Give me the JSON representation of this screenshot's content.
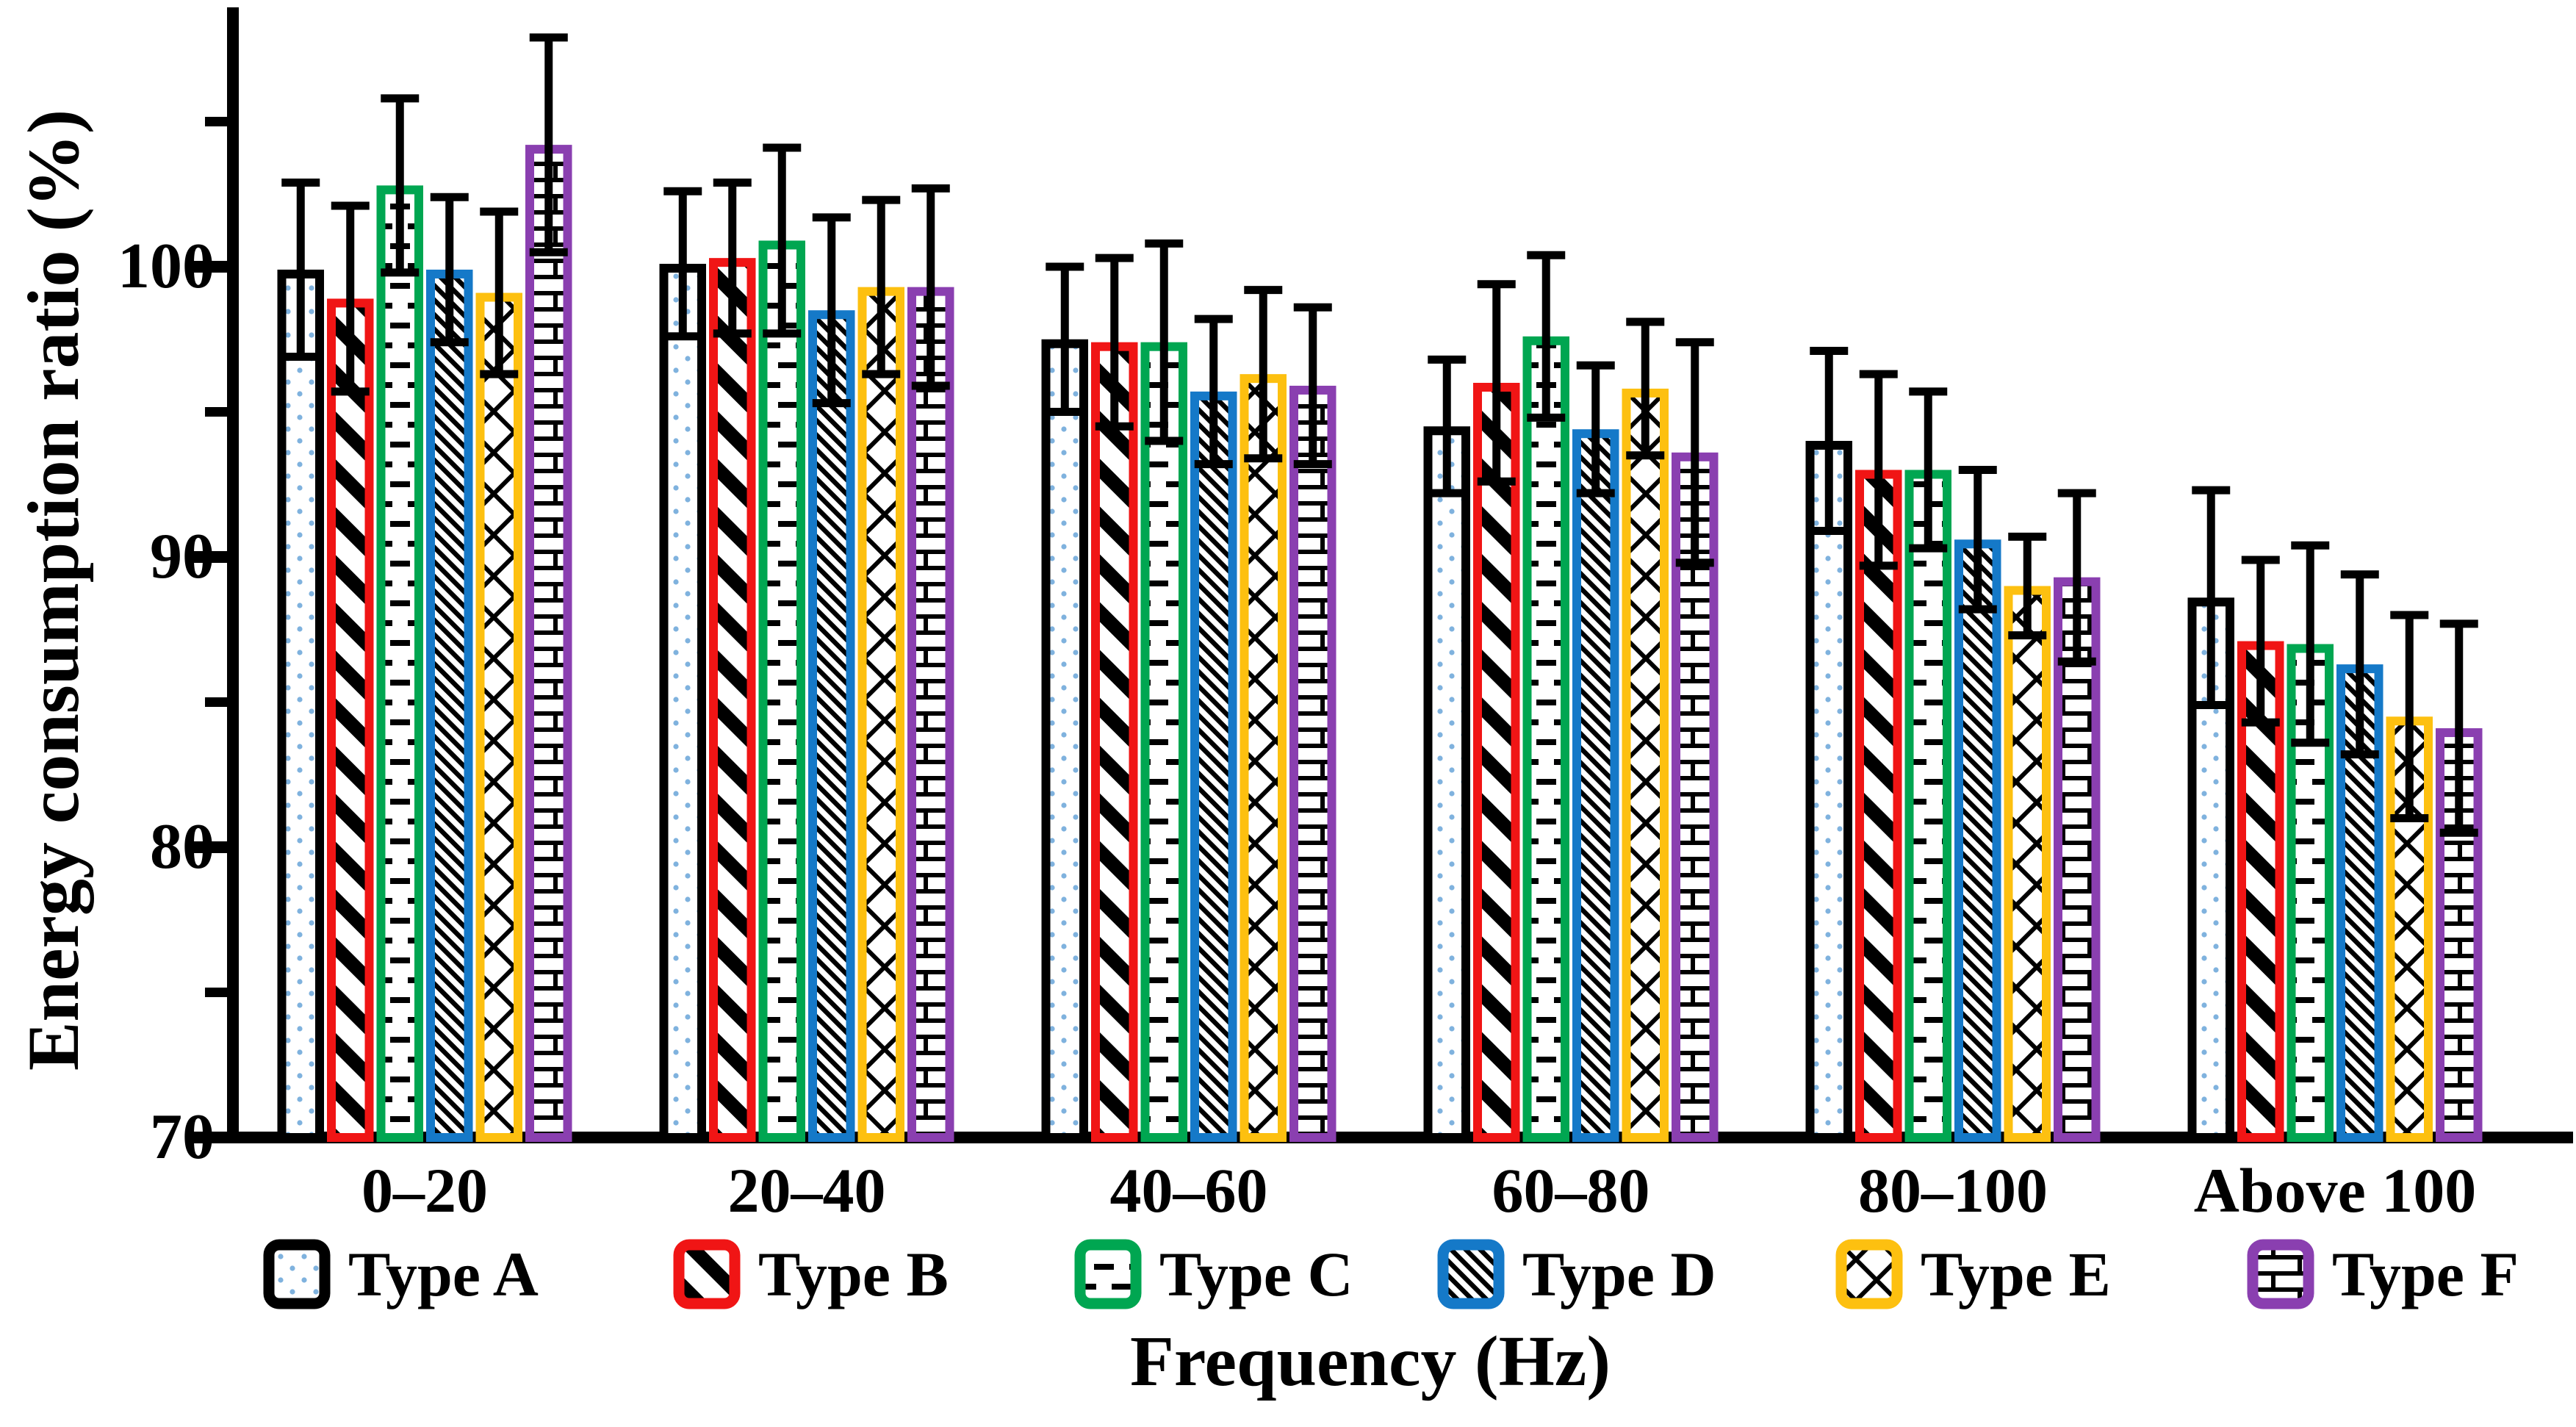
{
  "chart_data": {
    "type": "bar",
    "title": "",
    "xlabel": "Frequency (Hz)",
    "ylabel": "Energy consumption ratio (%)",
    "categories": [
      "0–20",
      "20–40",
      "40–60",
      "60–80",
      "80–100",
      "Above 100"
    ],
    "ylim": [
      70,
      108.8
    ],
    "ytick_labels": [
      "70",
      "80",
      "90",
      "100"
    ],
    "yticks_major": [
      70,
      80,
      90,
      100
    ],
    "yticks_minor": [
      75,
      85,
      95,
      105
    ],
    "grid": false,
    "legend_position": "bottom",
    "error_bars": true,
    "series": [
      {
        "name": "Type A",
        "color": "#000000",
        "pattern": "dots",
        "dot_color": "#7FB2DE",
        "values": [
          99.9,
          100.1,
          97.5,
          94.5,
          94.0,
          88.6
        ],
        "errors": [
          3.0,
          2.5,
          2.5,
          2.3,
          3.1,
          3.7
        ]
      },
      {
        "name": "Type B",
        "color": "#F01515",
        "pattern": "diagonal-thick",
        "values": [
          98.9,
          100.3,
          97.4,
          96.0,
          93.0,
          87.1
        ],
        "errors": [
          3.2,
          2.6,
          2.9,
          3.4,
          3.3,
          2.8
        ]
      },
      {
        "name": "Type C",
        "color": "#00A651",
        "pattern": "horizontal-dashes",
        "values": [
          102.8,
          100.9,
          97.4,
          97.6,
          93.0,
          87.0
        ],
        "errors": [
          3.0,
          3.2,
          3.4,
          2.8,
          2.7,
          3.4
        ]
      },
      {
        "name": "Type D",
        "color": "#1579C8",
        "pattern": "diagonal-thin",
        "values": [
          99.9,
          98.5,
          95.7,
          94.4,
          90.6,
          86.3
        ],
        "errors": [
          2.5,
          3.2,
          2.5,
          2.2,
          2.4,
          3.1
        ]
      },
      {
        "name": "Type E",
        "color": "#FDC010",
        "pattern": "crosshatch",
        "values": [
          99.1,
          99.3,
          96.3,
          95.8,
          89.0,
          84.5
        ],
        "errors": [
          2.8,
          3.0,
          2.9,
          2.3,
          1.7,
          3.5
        ]
      },
      {
        "name": "Type F",
        "color": "#8A3FB0",
        "pattern": "brick",
        "values": [
          104.2,
          99.3,
          95.9,
          93.6,
          89.3,
          84.1
        ],
        "errors": [
          3.7,
          3.4,
          2.7,
          3.8,
          2.9,
          3.6
        ]
      }
    ]
  }
}
